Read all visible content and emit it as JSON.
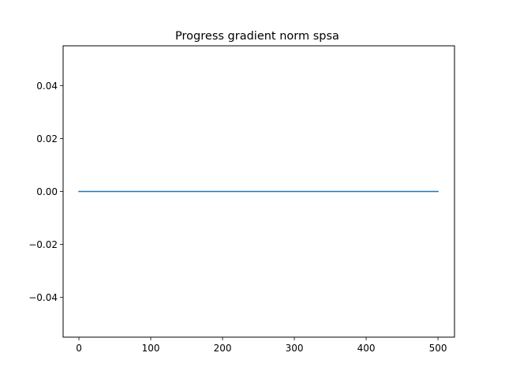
{
  "chart_data": {
    "type": "line",
    "title": "Progress gradient norm spsa",
    "xlabel": "",
    "ylabel": "",
    "xlim": [
      -22,
      523
    ],
    "ylim": [
      -0.055,
      0.055
    ],
    "xticks": [
      {
        "value": 0,
        "label": "0"
      },
      {
        "value": 100,
        "label": "100"
      },
      {
        "value": 200,
        "label": "200"
      },
      {
        "value": 300,
        "label": "300"
      },
      {
        "value": 400,
        "label": "400"
      },
      {
        "value": 500,
        "label": "500"
      }
    ],
    "yticks": [
      {
        "value": -0.04,
        "label": "−0.04"
      },
      {
        "value": -0.02,
        "label": "−0.02"
      },
      {
        "value": 0.0,
        "label": "0.00"
      },
      {
        "value": 0.02,
        "label": "0.02"
      },
      {
        "value": 0.04,
        "label": "0.04"
      }
    ],
    "grid": false,
    "series": [
      {
        "color": "#1f77b4",
        "x": [
          0,
          100,
          200,
          300,
          400,
          500
        ],
        "y": [
          0,
          0,
          0,
          0,
          0,
          0
        ]
      }
    ]
  }
}
